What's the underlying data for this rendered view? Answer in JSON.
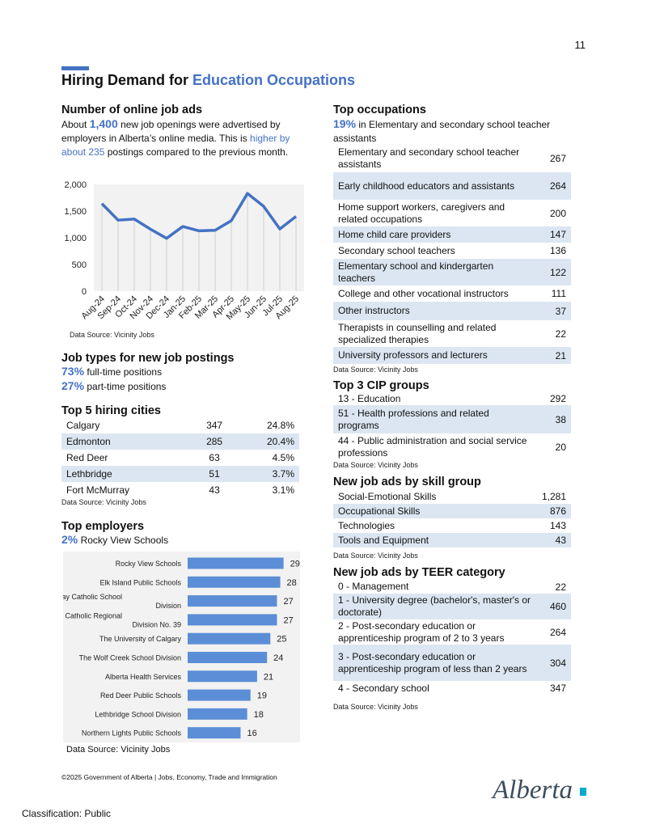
{
  "page_number": "11",
  "title": {
    "prefix": "Hiring Demand for ",
    "highlight": "Education Occupations"
  },
  "online_ads": {
    "heading": "Number of online job ads",
    "line1_pre": "About ",
    "count": "1,400",
    "line1_post": " new job openings were advertised by",
    "line2": "employers in Alberta’s online media. This is ",
    "change_a": "higher by",
    "change_b": "about 235",
    "line3_post": " postings compared to the previous month."
  },
  "chart_data": {
    "type": "line",
    "x": [
      "Aug-24",
      "Sep-24",
      "Oct-24",
      "Nov-24",
      "Dec-24",
      "Jan-25",
      "Feb-25",
      "Mar-25",
      "Apr-25",
      "May-25",
      "Jun-25",
      "Jul-25",
      "Aug-25"
    ],
    "series": [
      {
        "values": [
          1640,
          1330,
          1350,
          1160,
          990,
          1210,
          1130,
          1140,
          1320,
          1830,
          1590,
          1165,
          1400
        ]
      }
    ],
    "yticks": [
      "2,000",
      "1,500",
      "1,000",
      "500",
      "0"
    ],
    "ylim": [
      0,
      2000
    ],
    "grid": "vertical",
    "line_color": "#4472c4"
  },
  "chart_source": "Data Source: Vicinity Jobs",
  "job_types": {
    "heading": "Job types for new job postings",
    "full_pct": "73%",
    "full_label": "full-time positions",
    "part_pct": "27%",
    "part_label": "part-time positions"
  },
  "cities": {
    "heading": "Top 5 hiring cities",
    "rows": [
      {
        "name": "Calgary",
        "count": "347",
        "pct": "24.8%"
      },
      {
        "name": "Edmonton",
        "count": "285",
        "pct": "20.4%"
      },
      {
        "name": "Red Deer",
        "count": "63",
        "pct": "4.5%"
      },
      {
        "name": "Lethbridge",
        "count": "51",
        "pct": "3.7%"
      },
      {
        "name": "Fort McMurray",
        "count": "43",
        "pct": "3.1%"
      }
    ],
    "source": "Data Source: Vicinity Jobs"
  },
  "employers": {
    "heading": "Top employers",
    "top_pct": "2%",
    "top_name": "Rocky View Schools",
    "bar_color": "#5b8ed6",
    "rows": [
      {
        "line1": "Rocky View Schools",
        "line2": "",
        "value": 29
      },
      {
        "line1": "Elk Island Public Schools",
        "line2": "",
        "value": 28
      },
      {
        "line1": "Fort McMurray Catholic School",
        "line2": "Division",
        "value": 27
      },
      {
        "line1": "Red Deer Catholic Regional",
        "line2": "Division No. 39",
        "value": 27
      },
      {
        "line1": "The University of Calgary",
        "line2": "",
        "value": 25
      },
      {
        "line1": "The Wolf Creek School Division",
        "line2": "",
        "value": 24
      },
      {
        "line1": "Alberta Health Services",
        "line2": "",
        "value": 21
      },
      {
        "line1": "Red Deer Public Schools",
        "line2": "",
        "value": 19
      },
      {
        "line1": "Lethbridge School Division",
        "line2": "",
        "value": 18
      },
      {
        "line1": "Northern Lights Public Schools",
        "line2": "",
        "value": 16
      }
    ],
    "source": "Data Source: Vicinity Jobs"
  },
  "occupations": {
    "heading": "Top occupations",
    "pct": "19%",
    "pct_text": " in Elementary and secondary school teacher",
    "pct_text2": "assistants",
    "rows": [
      {
        "name": "Elementary and secondary school teacher assistants",
        "value": "267"
      },
      {
        "name": "Early childhood educators and assistants",
        "value": "264"
      },
      {
        "name": "Home support workers, caregivers and related occupations",
        "value": "200"
      },
      {
        "name": "Home child care providers",
        "value": "147"
      },
      {
        "name": "Secondary school teachers",
        "value": "136"
      },
      {
        "name": "Elementary school and kindergarten teachers",
        "value": "122"
      },
      {
        "name": "College and other vocational instructors",
        "value": "111"
      },
      {
        "name": "Other instructors",
        "value": "37"
      },
      {
        "name": "Therapists in counselling and related specialized therapies",
        "value": "22"
      },
      {
        "name": "University professors and lecturers",
        "value": "21"
      }
    ],
    "source": "Data Source: Vicinity Jobs"
  },
  "cip": {
    "heading": "Top 3 CIP groups",
    "rows": [
      {
        "name": "13 - Education",
        "value": "292"
      },
      {
        "name": "51 - Health professions and related programs",
        "value": "38"
      },
      {
        "name": "44 - Public administration and social service professions",
        "value": "20"
      }
    ],
    "source": "Data Source: Vicinity Jobs"
  },
  "skills": {
    "heading": "New job ads by skill group",
    "rows": [
      {
        "name": "Social-Emotional Skills",
        "value": "1,281"
      },
      {
        "name": "Occupational Skills",
        "value": "876"
      },
      {
        "name": "Technologies",
        "value": "143"
      },
      {
        "name": "Tools and Equipment",
        "value": "43"
      }
    ],
    "source": "Data Source: Vicinity Jobs"
  },
  "teer": {
    "heading": "New job ads by TEER category",
    "rows": [
      {
        "name": "0 - Management",
        "value": "22"
      },
      {
        "name": "1 - University degree (bachelor's, master's or doctorate)",
        "value": "460"
      },
      {
        "name": "2 - Post-secondary education or apprenticeship program of 2 to 3 years",
        "value": "264"
      },
      {
        "name": "3 - Post-secondary education or apprenticeship program of less than 2 years",
        "value": "304"
      },
      {
        "name": "4 - Secondary school",
        "value": "347"
      }
    ],
    "source": "Data Source: Vicinity Jobs"
  },
  "footer": "©2025 Government of Alberta | Jobs, Economy, Trade and Immigration",
  "classification": "Classification: Public",
  "logo_text": "Alberta",
  "logo_color": "#3d4e5c",
  "logo_accent": "#00aad2"
}
